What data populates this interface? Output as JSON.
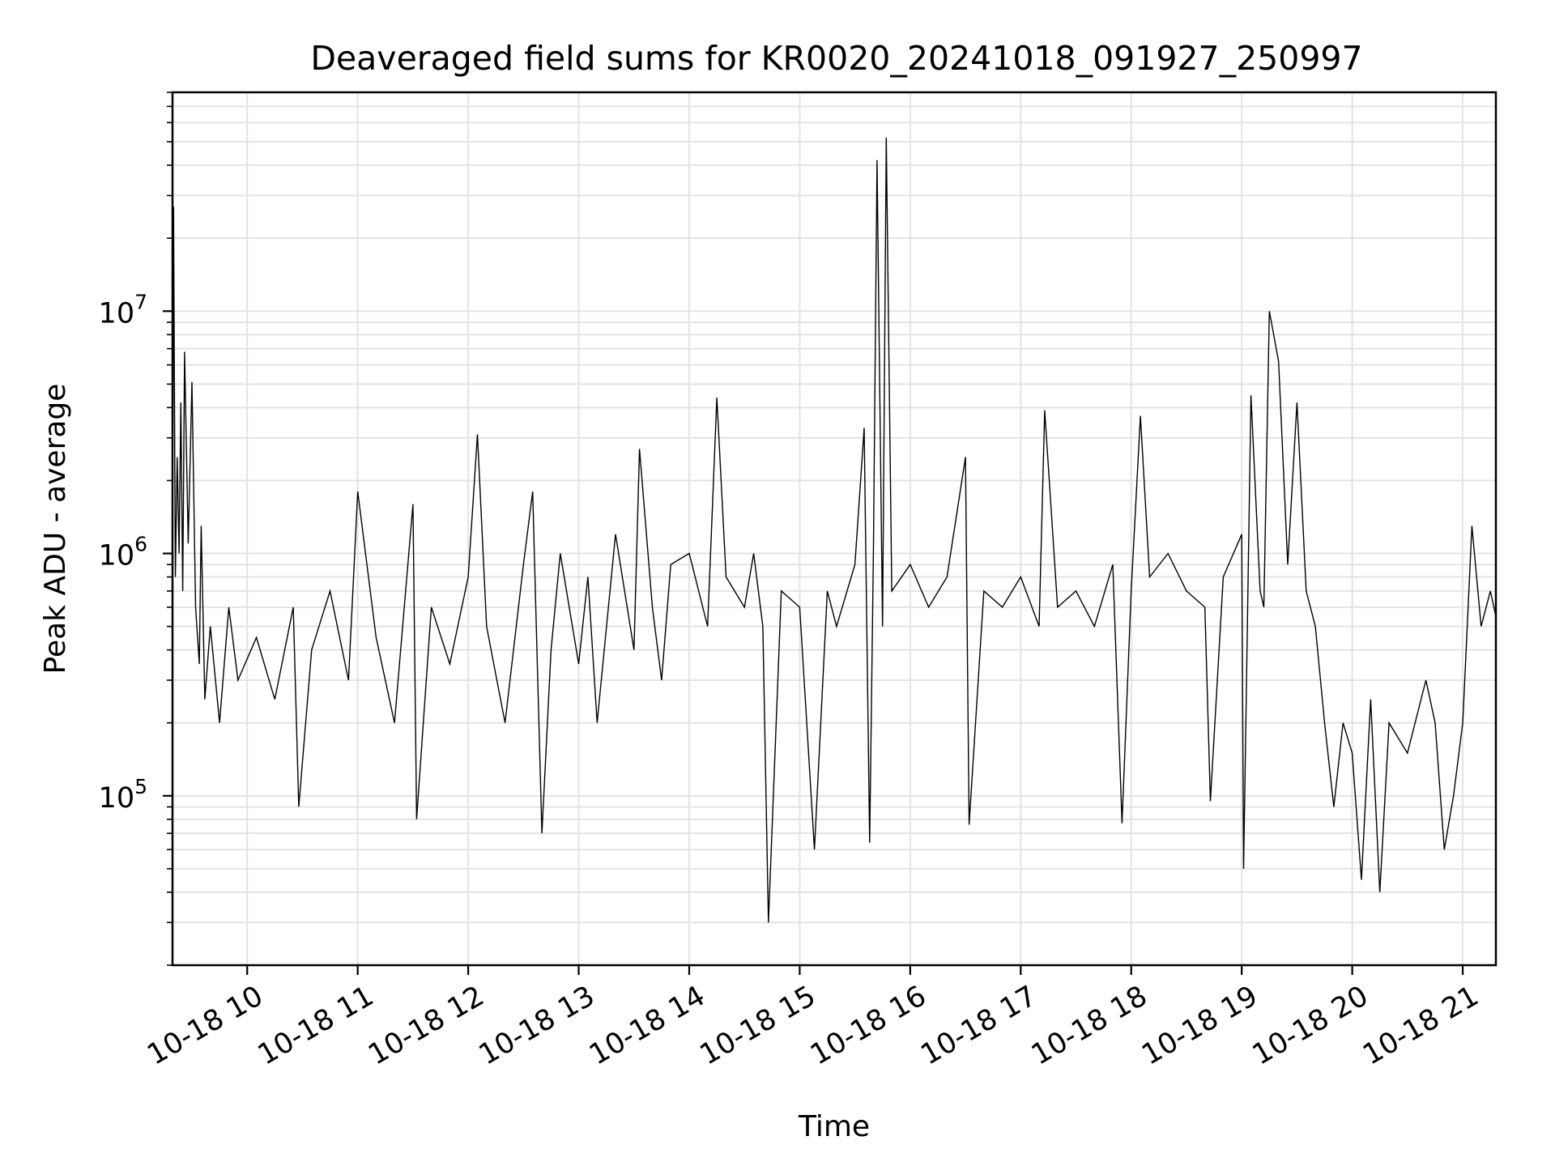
{
  "chart_data": {
    "type": "line",
    "title": "Deaveraged field sums for KR0020_20241018_091927_250997",
    "xlabel": "Time",
    "ylabel": "Peak ADU - average",
    "yscale": "log",
    "xlim": [
      "2024-10-18T09:19:27",
      "2024-10-18T21:18:00"
    ],
    "ylim": [
      20000,
      80000000
    ],
    "grid": true,
    "legend": "none",
    "line_color": "#000000",
    "x_ticks": [
      {
        "label": "10-18 10",
        "x": "2024-10-18T10:00"
      },
      {
        "label": "10-18 11",
        "x": "2024-10-18T11:00"
      },
      {
        "label": "10-18 12",
        "x": "2024-10-18T12:00"
      },
      {
        "label": "10-18 13",
        "x": "2024-10-18T13:00"
      },
      {
        "label": "10-18 14",
        "x": "2024-10-18T14:00"
      },
      {
        "label": "10-18 15",
        "x": "2024-10-18T15:00"
      },
      {
        "label": "10-18 16",
        "x": "2024-10-18T16:00"
      },
      {
        "label": "10-18 17",
        "x": "2024-10-18T17:00"
      },
      {
        "label": "10-18 18",
        "x": "2024-10-18T18:00"
      },
      {
        "label": "10-18 19",
        "x": "2024-10-18T19:00"
      },
      {
        "label": "10-18 20",
        "x": "2024-10-18T20:00"
      },
      {
        "label": "10-18 21",
        "x": "2024-10-18T21:00"
      }
    ],
    "y_ticks": [
      {
        "base": "10",
        "exp": "5",
        "value": 100000
      },
      {
        "base": "10",
        "exp": "6",
        "value": 1000000
      },
      {
        "base": "10",
        "exp": "7",
        "value": 10000000
      }
    ],
    "series": [
      {
        "x": [
          "2024-10-18T09:19:27",
          "2024-10-18T09:20",
          "2024-10-18T09:21",
          "2024-10-18T09:22",
          "2024-10-18T09:23",
          "2024-10-18T09:24",
          "2024-10-18T09:25",
          "2024-10-18T09:26",
          "2024-10-18T09:28",
          "2024-10-18T09:30",
          "2024-10-18T09:32",
          "2024-10-18T09:34",
          "2024-10-18T09:35",
          "2024-10-18T09:37",
          "2024-10-18T09:40",
          "2024-10-18T09:45",
          "2024-10-18T09:50",
          "2024-10-18T09:55",
          "2024-10-18T10:05",
          "2024-10-18T10:15",
          "2024-10-18T10:25",
          "2024-10-18T10:28",
          "2024-10-18T10:35",
          "2024-10-18T10:45",
          "2024-10-18T10:55",
          "2024-10-18T11:00",
          "2024-10-18T11:10",
          "2024-10-18T11:20",
          "2024-10-18T11:30",
          "2024-10-18T11:32",
          "2024-10-18T11:40",
          "2024-10-18T11:50",
          "2024-10-18T12:00",
          "2024-10-18T12:05",
          "2024-10-18T12:10",
          "2024-10-18T12:20",
          "2024-10-18T12:30",
          "2024-10-18T12:35",
          "2024-10-18T12:40",
          "2024-10-18T12:45",
          "2024-10-18T12:50",
          "2024-10-18T13:00",
          "2024-10-18T13:05",
          "2024-10-18T13:10",
          "2024-10-18T13:20",
          "2024-10-18T13:30",
          "2024-10-18T13:33",
          "2024-10-18T13:40",
          "2024-10-18T13:45",
          "2024-10-18T13:50",
          "2024-10-18T14:00",
          "2024-10-18T14:10",
          "2024-10-18T14:15",
          "2024-10-18T14:20",
          "2024-10-18T14:30",
          "2024-10-18T14:35",
          "2024-10-18T14:40",
          "2024-10-18T14:43",
          "2024-10-18T14:50",
          "2024-10-18T15:00",
          "2024-10-18T15:08",
          "2024-10-18T15:15",
          "2024-10-18T15:20",
          "2024-10-18T15:30",
          "2024-10-18T15:35",
          "2024-10-18T15:38",
          "2024-10-18T15:40",
          "2024-10-18T15:42",
          "2024-10-18T15:45",
          "2024-10-18T15:47",
          "2024-10-18T15:50",
          "2024-10-18T16:00",
          "2024-10-18T16:10",
          "2024-10-18T16:20",
          "2024-10-18T16:30",
          "2024-10-18T16:32",
          "2024-10-18T16:40",
          "2024-10-18T16:50",
          "2024-10-18T17:00",
          "2024-10-18T17:10",
          "2024-10-18T17:13",
          "2024-10-18T17:20",
          "2024-10-18T17:30",
          "2024-10-18T17:40",
          "2024-10-18T17:50",
          "2024-10-18T17:55",
          "2024-10-18T18:00",
          "2024-10-18T18:05",
          "2024-10-18T18:10",
          "2024-10-18T18:20",
          "2024-10-18T18:30",
          "2024-10-18T18:40",
          "2024-10-18T18:43",
          "2024-10-18T18:50",
          "2024-10-18T19:00",
          "2024-10-18T19:01",
          "2024-10-18T19:05",
          "2024-10-18T19:10",
          "2024-10-18T19:12",
          "2024-10-18T19:15",
          "2024-10-18T19:20",
          "2024-10-18T19:25",
          "2024-10-18T19:30",
          "2024-10-18T19:35",
          "2024-10-18T19:40",
          "2024-10-18T19:45",
          "2024-10-18T19:50",
          "2024-10-18T19:55",
          "2024-10-18T20:00",
          "2024-10-18T20:05",
          "2024-10-18T20:10",
          "2024-10-18T20:15",
          "2024-10-18T20:20",
          "2024-10-18T20:30",
          "2024-10-18T20:40",
          "2024-10-18T20:45",
          "2024-10-18T20:50",
          "2024-10-18T20:55",
          "2024-10-18T21:00",
          "2024-10-18T21:05",
          "2024-10-18T21:10",
          "2024-10-18T21:15",
          "2024-10-18T21:18"
        ],
        "y": [
          900000,
          27000000,
          800000,
          2500000,
          1000000,
          4200000,
          700000,
          6800000,
          1100000,
          5100000,
          600000,
          350000,
          1300000,
          250000,
          500000,
          200000,
          600000,
          300000,
          450000,
          250000,
          600000,
          90000,
          400000,
          700000,
          300000,
          1800000,
          450000,
          200000,
          1600000,
          80000,
          600000,
          350000,
          800000,
          3100000,
          500000,
          200000,
          900000,
          1800000,
          70000,
          400000,
          1000000,
          350000,
          800000,
          200000,
          1200000,
          400000,
          2700000,
          600000,
          300000,
          900000,
          1000000,
          500000,
          4400000,
          800000,
          600000,
          1000000,
          500000,
          30000,
          700000,
          600000,
          60000,
          700000,
          500000,
          900000,
          3300000,
          64000,
          1000000,
          42000000,
          500000,
          52000000,
          700000,
          900000,
          600000,
          800000,
          2500000,
          76000,
          700000,
          600000,
          800000,
          500000,
          3900000,
          600000,
          700000,
          500000,
          900000,
          77000,
          700000,
          3700000,
          800000,
          1000000,
          700000,
          600000,
          95000,
          800000,
          1200000,
          50000,
          4500000,
          700000,
          600000,
          10000000,
          6200000,
          900000,
          4200000,
          700000,
          500000,
          200000,
          90000,
          200000,
          150000,
          45000,
          250000,
          40000,
          200000,
          150000,
          300000,
          200000,
          60000,
          100000,
          200000,
          1300000,
          500000,
          700000,
          550000
        ]
      }
    ]
  }
}
